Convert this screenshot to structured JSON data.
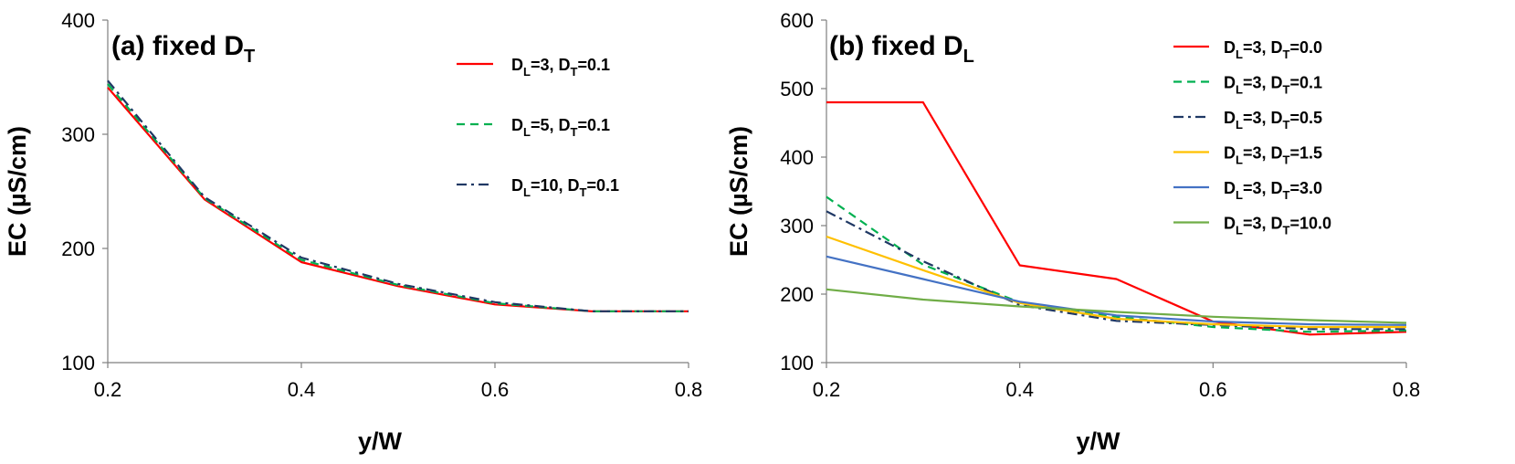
{
  "chart_data": [
    {
      "type": "line",
      "title": "(a) fixed D",
      "title_sub": "T",
      "xlabel": "y/W",
      "ylabel": "EC (µS/cm)",
      "xlim": [
        0.2,
        0.8
      ],
      "ylim": [
        100,
        400
      ],
      "xticks": [
        "0.2",
        "0.4",
        "0.6",
        "0.8"
      ],
      "yticks": [
        "100",
        "200",
        "300",
        "400"
      ],
      "grid": false,
      "legend_position": "top-right",
      "x": [
        0.2,
        0.3,
        0.4,
        0.5,
        0.6,
        0.7,
        0.8
      ],
      "series": [
        {
          "label": {
            "p1": "D",
            "s1": "L",
            "p2": "=3, D",
            "s2": "T",
            "p3": "=0.1"
          },
          "color": "#ff0000",
          "dash": "solid",
          "values": [
            341,
            243,
            188,
            167,
            151,
            145,
            145
          ]
        },
        {
          "label": {
            "p1": "D",
            "s1": "L",
            "p2": "=5, D",
            "s2": "T",
            "p3": "=0.1"
          },
          "color": "#00b050",
          "dash": "dashed",
          "values": [
            344,
            244,
            190,
            168,
            152,
            145,
            145
          ]
        },
        {
          "label": {
            "p1": "D",
            "s1": "L",
            "p2": "=10, D",
            "s2": "T",
            "p3": "=0.1"
          },
          "color": "#1f3864",
          "dash": "dashdot",
          "values": [
            347,
            245,
            192,
            169,
            153,
            145,
            145
          ]
        }
      ]
    },
    {
      "type": "line",
      "title": "(b) fixed D",
      "title_sub": "L",
      "xlabel": "y/W",
      "ylabel": "EC (µS/cm)",
      "xlim": [
        0.2,
        0.8
      ],
      "ylim": [
        100,
        600
      ],
      "xticks": [
        "0.2",
        "0.4",
        "0.6",
        "0.8"
      ],
      "yticks": [
        "100",
        "200",
        "300",
        "400",
        "500",
        "600"
      ],
      "grid": false,
      "legend_position": "top-right",
      "x": [
        0.2,
        0.3,
        0.4,
        0.5,
        0.6,
        0.7,
        0.8
      ],
      "series": [
        {
          "label": {
            "p1": "D",
            "s1": "L",
            "p2": "=3, D",
            "s2": "T",
            "p3": "=0.0"
          },
          "color": "#ff0000",
          "dash": "solid",
          "values": [
            480,
            480,
            242,
            222,
            160,
            141,
            145
          ]
        },
        {
          "label": {
            "p1": "D",
            "s1": "L",
            "p2": "=3, D",
            "s2": "T",
            "p3": "=0.1"
          },
          "color": "#00b050",
          "dash": "dashed",
          "values": [
            342,
            243,
            188,
            167,
            152,
            145,
            147
          ]
        },
        {
          "label": {
            "p1": "D",
            "s1": "L",
            "p2": "=3, D",
            "s2": "T",
            "p3": "=0.5"
          },
          "color": "#1f3864",
          "dash": "dashdot",
          "values": [
            321,
            248,
            184,
            161,
            155,
            149,
            149
          ]
        },
        {
          "label": {
            "p1": "D",
            "s1": "L",
            "p2": "=3, D",
            "s2": "T",
            "p3": "=1.5"
          },
          "color": "#ffc000",
          "dash": "solid",
          "values": [
            284,
            235,
            187,
            164,
            156,
            152,
            152
          ]
        },
        {
          "label": {
            "p1": "D",
            "s1": "L",
            "p2": "=3, D",
            "s2": "T",
            "p3": "=3.0"
          },
          "color": "#4472c4",
          "dash": "solid",
          "values": [
            255,
            222,
            189,
            169,
            160,
            156,
            155
          ]
        },
        {
          "label": {
            "p1": "D",
            "s1": "L",
            "p2": "=3, D",
            "s2": "T",
            "p3": "=10.0"
          },
          "color": "#70ad47",
          "dash": "solid",
          "values": [
            207,
            192,
            182,
            174,
            167,
            162,
            158
          ]
        }
      ]
    }
  ]
}
